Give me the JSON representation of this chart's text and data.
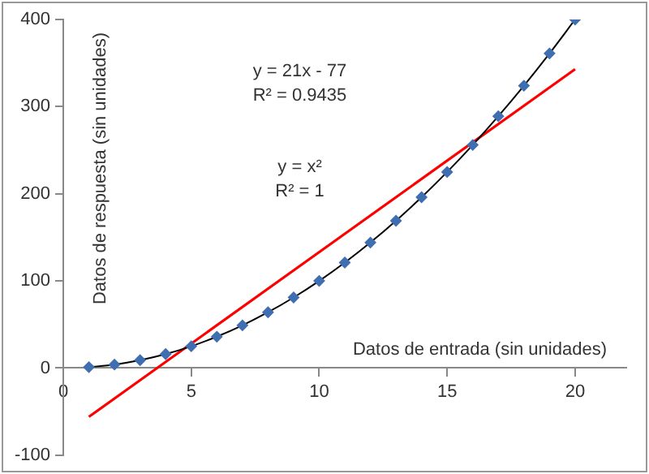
{
  "chart_data": {
    "type": "scatter",
    "xlabel": "Datos de entrada (sin unidades)",
    "ylabel": "Datos de respuesta (sin unidades)",
    "x": [
      1,
      2,
      3,
      4,
      5,
      6,
      7,
      8,
      9,
      10,
      11,
      12,
      13,
      14,
      15,
      16,
      17,
      18,
      19,
      20
    ],
    "series": [
      {
        "type": "scatter",
        "color": "#3f6fb0",
        "marker": "diamond",
        "values": [
          1,
          4,
          9,
          16,
          25,
          36,
          49,
          64,
          81,
          100,
          121,
          144,
          169,
          196,
          225,
          256,
          289,
          324,
          361,
          400
        ]
      },
      {
        "type": "line",
        "color": "#000000",
        "marker": "none",
        "values": [
          1,
          4,
          9,
          16,
          25,
          36,
          49,
          64,
          81,
          100,
          121,
          144,
          169,
          196,
          225,
          256,
          289,
          324,
          361,
          400
        ]
      },
      {
        "type": "line",
        "color": "#ff0000",
        "marker": "none",
        "x": [
          1,
          20
        ],
        "values": [
          -56,
          343
        ]
      }
    ],
    "annotations": [
      "y = 21x - 77\nR² = 0.9435",
      "y = x²\nR² = 1"
    ],
    "xlim": [
      0,
      22
    ],
    "xticks": [
      0,
      5,
      10,
      15,
      20
    ],
    "ylim": [
      -100,
      400
    ],
    "yticks": [
      -100,
      0,
      100,
      200,
      300,
      400
    ],
    "grid": false,
    "legend": false
  }
}
